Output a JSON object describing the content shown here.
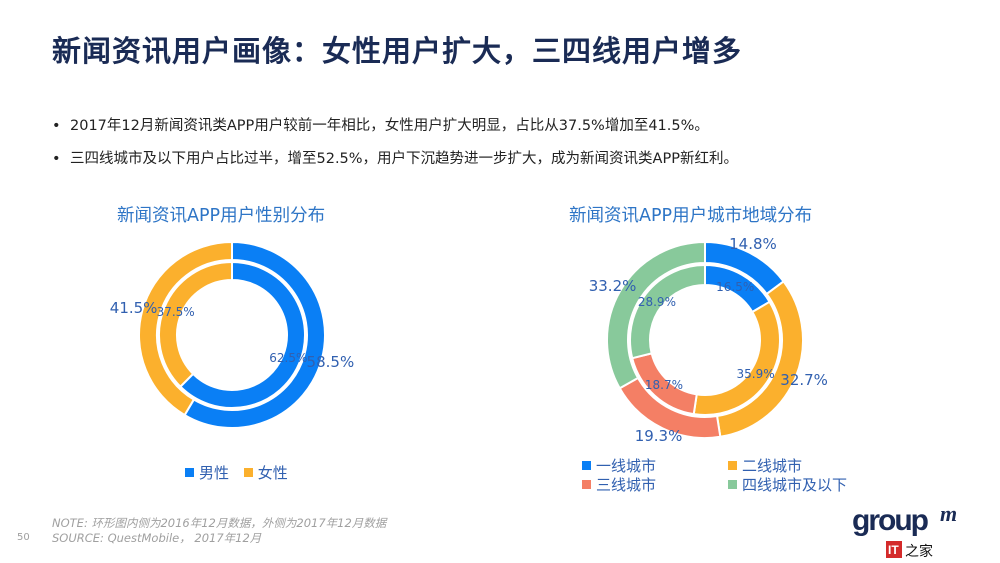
{
  "title": "新闻资讯用户画像：女性用户扩大，三四线用户增多",
  "bullets": [
    "2017年12月新闻资讯类APP用户较前一年相比，女性用户扩大明显，占比从37.5%增加至41.5%。",
    "三四线城市及以下用户占比过半，增至52.5%，用户下沉趋势进一步扩大，成为新闻资讯类APP新红利。"
  ],
  "bullet_char": "•",
  "chart_data": [
    {
      "type": "donut",
      "title": "新闻资讯APP用户性别分布",
      "categories": [
        "男性",
        "女性"
      ],
      "colors": [
        "#0a7ff5",
        "#fbb02d"
      ],
      "series": [
        {
          "ring": "outer",
          "values": [
            58.5,
            41.5
          ],
          "labels": [
            "58.5%",
            "41.5%"
          ]
        },
        {
          "ring": "inner",
          "values": [
            62.5,
            37.5
          ],
          "labels": [
            "62.5%",
            "37.5%"
          ]
        }
      ],
      "legend": "bottom"
    },
    {
      "type": "donut",
      "title": "新闻资讯APP用户城市地域分布",
      "categories": [
        "一线城市",
        "二线城市",
        "三线城市",
        "四线城市及以下"
      ],
      "colors": [
        "#0a7ff5",
        "#fbb02d",
        "#f47f65",
        "#88c99b"
      ],
      "series": [
        {
          "ring": "outer",
          "values": [
            14.8,
            32.7,
            19.3,
            33.2
          ],
          "labels": [
            "14.8%",
            "32.7%",
            "19.3%",
            "33.2%"
          ]
        },
        {
          "ring": "inner",
          "values": [
            16.5,
            35.9,
            18.7,
            28.9
          ],
          "labels": [
            "16.5%",
            "35.9%",
            "18.7%",
            "28.9%"
          ]
        }
      ],
      "legend": "bottom"
    }
  ],
  "footer": {
    "note": "NOTE: 环形图内侧为2016年12月数据，外侧为2017年12月数据",
    "source": "SOURCE: QuestMobile， 2017年12月",
    "page": "50",
    "logo_text": "groupm",
    "logo_sub": "IT之家"
  }
}
